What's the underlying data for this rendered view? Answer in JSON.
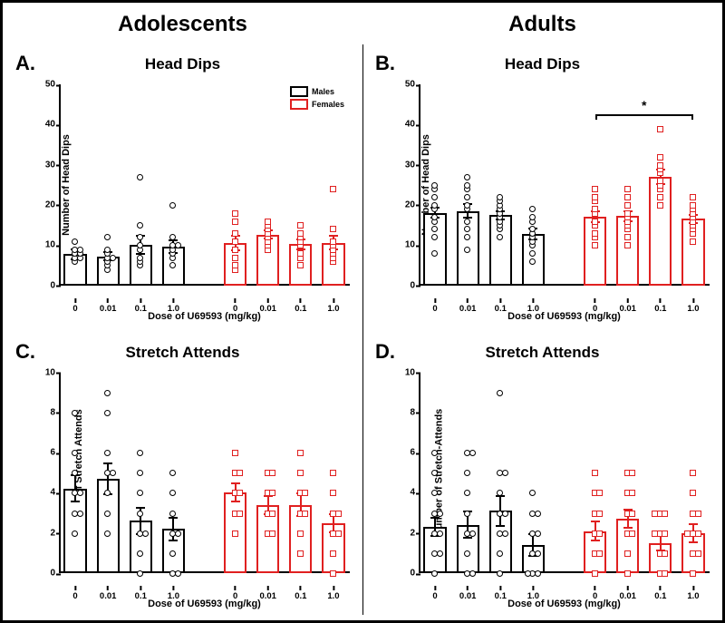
{
  "column_titles": {
    "left": "Adolescents",
    "right": "Adults"
  },
  "colors": {
    "male": "#000000",
    "female": "#e02020",
    "bg": "#ffffff"
  },
  "legend": {
    "items": [
      {
        "key": "males",
        "label": "Males",
        "swatch_border": "#000000"
      },
      {
        "key": "females",
        "label": "Females",
        "swatch_border": "#e02020"
      }
    ],
    "fontsize": 9
  },
  "global": {
    "xaxis_label": "Dose of U69593 (mg/kg)",
    "categories": [
      "0",
      "0.01",
      "0.1",
      "1.0"
    ],
    "marker_male": {
      "shape": "circle",
      "border": "#000000",
      "fill": "#ffffff",
      "size": 7
    },
    "marker_female": {
      "shape": "square",
      "border": "#e02020",
      "fill": "#ffffff",
      "size": 7
    },
    "bar_border_width": 2,
    "err_width": 2,
    "group_gap_pct": 10,
    "axis_color": "#000000"
  },
  "panels": [
    {
      "id": "A",
      "letter": "A.",
      "title": "Head Dips",
      "ylabel": "Number of Head Dips",
      "ylim": [
        0,
        50
      ],
      "ytick_step": 10,
      "show_legend": true,
      "groups": [
        {
          "sex": "male",
          "means": [
            7.7,
            7.2,
            10.0,
            9.5
          ],
          "sem": [
            1.5,
            1.2,
            2.5,
            1.8
          ],
          "points": [
            [
              6,
              7,
              7,
              8,
              8,
              9,
              9,
              11
            ],
            [
              4,
              5,
              6,
              7,
              7,
              8,
              9,
              12
            ],
            [
              5,
              6,
              7,
              9,
              10,
              12,
              15,
              27
            ],
            [
              5,
              7,
              8,
              9,
              10,
              10,
              12,
              20
            ]
          ]
        },
        {
          "sex": "female",
          "means": [
            10.5,
            12.6,
            10.2,
            10.6
          ],
          "sem": [
            2.0,
            1.2,
            1.5,
            2.0
          ],
          "points": [
            [
              4,
              5,
              7,
              9,
              11,
              13,
              16,
              18
            ],
            [
              9,
              10,
              11,
              12,
              13,
              14,
              15,
              16
            ],
            [
              5,
              7,
              8,
              10,
              11,
              12,
              13,
              15
            ],
            [
              6,
              7,
              8,
              9,
              10,
              11,
              14,
              24
            ]
          ]
        }
      ]
    },
    {
      "id": "B",
      "letter": "B.",
      "title": "Head Dips",
      "ylabel": "Number of Head Dips",
      "ylim": [
        0,
        50
      ],
      "ytick_step": 10,
      "significance": {
        "from": [
          "female",
          "0"
        ],
        "to": [
          "female",
          "1.0"
        ],
        "label": "*",
        "y": 42
      },
      "groups": [
        {
          "sex": "male",
          "means": [
            18.0,
            18.5,
            17.4,
            12.8
          ],
          "sem": [
            1.5,
            2.0,
            1.2,
            1.6
          ],
          "points": [
            [
              8,
              12,
              14,
              16,
              17,
              19,
              20,
              22,
              24,
              25
            ],
            [
              9,
              12,
              14,
              16,
              19,
              20,
              22,
              24,
              25,
              27
            ],
            [
              12,
              14,
              15,
              16,
              17,
              18,
              19,
              20,
              21,
              22
            ],
            [
              6,
              8,
              10,
              11,
              12,
              13,
              14,
              16,
              17,
              19
            ]
          ]
        },
        {
          "sex": "female",
          "means": [
            17.0,
            17.2,
            27.0,
            16.5
          ],
          "sem": [
            1.6,
            1.5,
            2.0,
            1.3
          ],
          "points": [
            [
              10,
              12,
              13,
              15,
              16,
              18,
              19,
              21,
              22,
              24
            ],
            [
              10,
              12,
              14,
              15,
              16,
              17,
              18,
              20,
              22,
              24
            ],
            [
              20,
              22,
              24,
              25,
              26,
              28,
              29,
              30,
              32,
              39
            ],
            [
              11,
              13,
              14,
              15,
              16,
              17,
              18,
              19,
              20,
              22
            ]
          ]
        }
      ]
    },
    {
      "id": "C",
      "letter": "C.",
      "title": "Stretch Attends",
      "ylabel": "Number of Stretch Attends",
      "ylim": [
        0,
        10
      ],
      "ytick_step": 2,
      "groups": [
        {
          "sex": "male",
          "means": [
            4.2,
            4.7,
            2.6,
            2.2
          ],
          "sem": [
            0.7,
            0.8,
            0.7,
            0.6
          ],
          "points": [
            [
              2,
              3,
              3,
              4,
              4,
              5,
              6,
              8
            ],
            [
              2,
              3,
              4,
              5,
              5,
              6,
              8,
              9
            ],
            [
              0,
              1,
              2,
              2,
              3,
              4,
              5,
              6
            ],
            [
              0,
              0,
              1,
              2,
              2,
              3,
              4,
              5
            ]
          ]
        },
        {
          "sex": "female",
          "means": [
            4.0,
            3.4,
            3.4,
            2.5
          ],
          "sem": [
            0.5,
            0.5,
            0.6,
            0.5
          ],
          "points": [
            [
              2,
              3,
              3,
              4,
              4,
              5,
              5,
              6
            ],
            [
              2,
              2,
              3,
              3,
              4,
              4,
              5,
              5
            ],
            [
              1,
              2,
              3,
              3,
              4,
              4,
              5,
              6
            ],
            [
              0,
              1,
              2,
              2,
              3,
              3,
              4,
              5
            ]
          ]
        }
      ]
    },
    {
      "id": "D",
      "letter": "D.",
      "title": "Stretch Attends",
      "ylabel": "Number of Stretch-Attends",
      "ylim": [
        0,
        10
      ],
      "ytick_step": 2,
      "groups": [
        {
          "sex": "male",
          "means": [
            2.3,
            2.4,
            3.1,
            1.4
          ],
          "sem": [
            0.5,
            0.7,
            0.8,
            0.6
          ],
          "points": [
            [
              0,
              1,
              1,
              2,
              2,
              3,
              3,
              4,
              5,
              6
            ],
            [
              0,
              0,
              1,
              2,
              2,
              3,
              4,
              5,
              6,
              6
            ],
            [
              0,
              1,
              2,
              2,
              3,
              3,
              4,
              5,
              5,
              9
            ],
            [
              0,
              0,
              0,
              1,
              1,
              2,
              2,
              3,
              3,
              4
            ]
          ]
        },
        {
          "sex": "female",
          "means": [
            2.1,
            2.7,
            1.5,
            2.0
          ],
          "sem": [
            0.5,
            0.5,
            0.4,
            0.5
          ],
          "points": [
            [
              0,
              1,
              1,
              2,
              2,
              3,
              3,
              4,
              4,
              5
            ],
            [
              0,
              1,
              2,
              2,
              3,
              3,
              4,
              4,
              5,
              5
            ],
            [
              0,
              0,
              1,
              1,
              2,
              2,
              2,
              3,
              3,
              3
            ],
            [
              0,
              1,
              1,
              2,
              2,
              2,
              3,
              3,
              4,
              5
            ]
          ]
        }
      ]
    }
  ]
}
